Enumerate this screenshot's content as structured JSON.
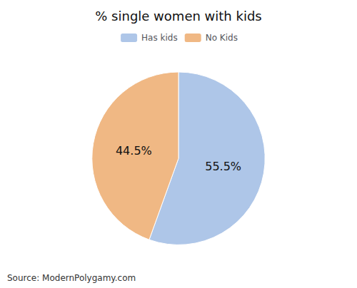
{
  "chart_data": {
    "type": "pie",
    "title": "% single women with kids",
    "categories": [
      "Has kids",
      "No Kids"
    ],
    "values": [
      55.5,
      44.5
    ],
    "value_labels": [
      "55.5%",
      "44.5%"
    ],
    "data_labels": true,
    "colors": [
      "#aec6e8",
      "#f0b884"
    ],
    "legend": "top",
    "annotations": [
      "Source: ModernPolygamy.com"
    ]
  }
}
